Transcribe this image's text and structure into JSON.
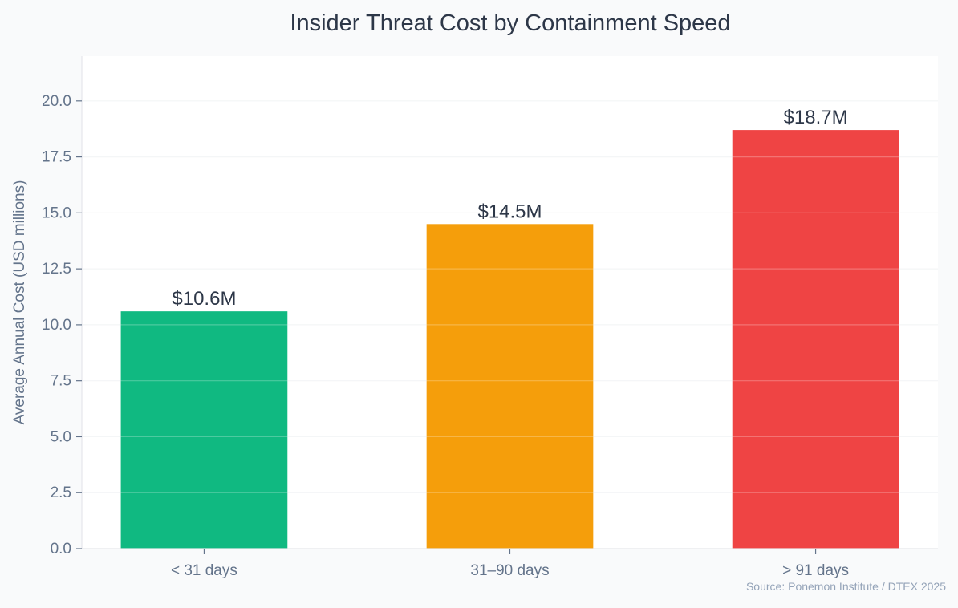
{
  "chart_data": {
    "type": "bar",
    "title": "Insider Threat Cost by Containment Speed",
    "xlabel": "",
    "ylabel": "Average Annual Cost (USD millions)",
    "categories": [
      "< 31 days",
      "31–90 days",
      "> 91 days"
    ],
    "values": [
      10.6,
      14.5,
      18.7
    ],
    "data_labels": [
      "$10.6M",
      "$14.5M",
      "$18.7M"
    ],
    "colors": [
      "#10b981",
      "#f59e0b",
      "#ef4444"
    ],
    "ylim": [
      0,
      22
    ],
    "yticks": [
      0.0,
      2.5,
      5.0,
      7.5,
      10.0,
      12.5,
      15.0,
      17.5,
      20.0
    ],
    "ytick_labels": [
      "0.0",
      "2.5",
      "5.0",
      "7.5",
      "10.0",
      "12.5",
      "15.0",
      "17.5",
      "20.0"
    ],
    "grid": true,
    "legend": "none",
    "source": "Source: Ponemon Institute / DTEX 2025"
  }
}
